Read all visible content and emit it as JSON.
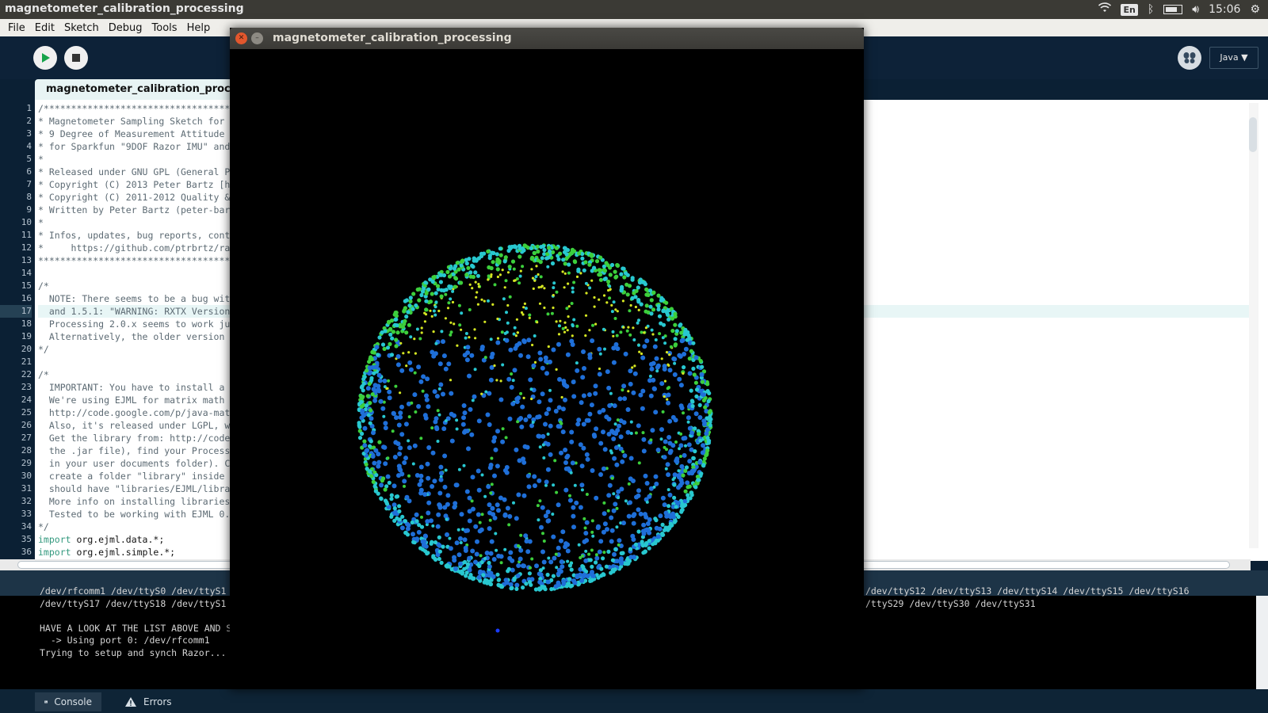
{
  "panel": {
    "app_title": "magnetometer_calibration_processing",
    "lang": "En",
    "clock": "15:06"
  },
  "menubar": {
    "items": [
      "File",
      "Edit",
      "Sketch",
      "Debug",
      "Tools",
      "Help"
    ]
  },
  "toolbar": {
    "run_icon": "play-icon",
    "stop_icon": "stop-icon",
    "debugger_icon": "butterfly-icon",
    "mode": "Java ▼"
  },
  "editor": {
    "tab_label": "magnetometer_calibration_processing",
    "current_line": 17,
    "lines": [
      {
        "n": "1",
        "t": "/*******************************************************************"
      },
      {
        "n": "2",
        "t": "* Magnetometer Sampling Sketch for"
      },
      {
        "n": "3",
        "t": "* 9 Degree of Measurement Attitude"
      },
      {
        "n": "4",
        "t": "* for Sparkfun \"9DOF Razor IMU\" and"
      },
      {
        "n": "5",
        "t": "*"
      },
      {
        "n": "6",
        "t": "* Released under GNU GPL (General P"
      },
      {
        "n": "7",
        "t": "* Copyright (C) 2013 Peter Bartz [h"
      },
      {
        "n": "8",
        "t": "* Copyright (C) 2011-2012 Quality &"
      },
      {
        "n": "9",
        "t": "* Written by Peter Bartz (peter-bar"
      },
      {
        "n": "10",
        "t": "*"
      },
      {
        "n": "11",
        "t": "* Infos, updates, bug reports, cont"
      },
      {
        "n": "12",
        "t": "*     https://github.com/ptrbrtz/ra"
      },
      {
        "n": "13",
        "t": "*******************************************************************"
      },
      {
        "n": "14",
        "t": ""
      },
      {
        "n": "15",
        "t": "/*"
      },
      {
        "n": "16",
        "t": "  NOTE: There seems to be a bug wit"
      },
      {
        "n": "17",
        "t": "  and 1.5.1: \"WARNING: RXTX Version"
      },
      {
        "n": "18",
        "t": "  Processing 2.0.x seems to work ju"
      },
      {
        "n": "19",
        "t": "  Alternatively, the older version"
      },
      {
        "n": "20",
        "t": "*/"
      },
      {
        "n": "21",
        "t": ""
      },
      {
        "n": "22",
        "t": "/*"
      },
      {
        "n": "23",
        "t": "  IMPORTANT: You have to install a"
      },
      {
        "n": "24",
        "t": "  We're using EJML for matrix math"
      },
      {
        "n": "25",
        "t": "  http://code.google.com/p/java-mat"
      },
      {
        "n": "26",
        "t": "  Also, it's released under LGPL, w"
      },
      {
        "n": "27",
        "t": "  Get the library from: http://code"
      },
      {
        "n": "28",
        "t": "  the .jar file), find your Process"
      },
      {
        "n": "29",
        "t": "  in your user documents folder). C"
      },
      {
        "n": "30",
        "t": "  create a folder \"library\" inside"
      },
      {
        "n": "31",
        "t": "  should have \"libraries/EJML/libra"
      },
      {
        "n": "32",
        "t": "  More info on installing libraries"
      },
      {
        "n": "33",
        "t": "  Tested to be working with EJML 0."
      },
      {
        "n": "34",
        "t": "*/"
      },
      {
        "n": "35",
        "kw": "import",
        "t": " org.ejml.data.*;"
      },
      {
        "n": "36",
        "kw": "import",
        "t": " org.ejml.simple.*;"
      }
    ]
  },
  "console": {
    "lines": [
      "/dev/rfcomm1 /dev/ttyS0 /dev/ttyS1",
      "/dev/ttyS17 /dev/ttyS18 /dev/ttyS1",
      "",
      "HAVE A LOOK AT THE LIST ABOVE AND S",
      "  -> Using port 0: /dev/rfcomm1",
      "Trying to setup and synch Razor..."
    ],
    "right_lines": [
      "/dev/ttyS12 /dev/ttyS13 /dev/ttyS14 /dev/ttyS15 /dev/ttyS16",
      "/ttyS29 /dev/ttyS30 /dev/ttyS31"
    ],
    "tabs": [
      {
        "label": "Console",
        "icon": "terminal-icon"
      },
      {
        "label": "Errors",
        "icon": "warning-icon"
      }
    ]
  },
  "sketch_window": {
    "title": "magnetometer_calibration_processing",
    "close_icon": "close-icon",
    "minimize_icon": "minimize-icon"
  },
  "colors": {
    "sphere_blue": "#1f6fd8",
    "sphere_cyan": "#28c8d0",
    "sphere_green": "#3ccf3c",
    "sphere_yellow": "#d4e622"
  }
}
